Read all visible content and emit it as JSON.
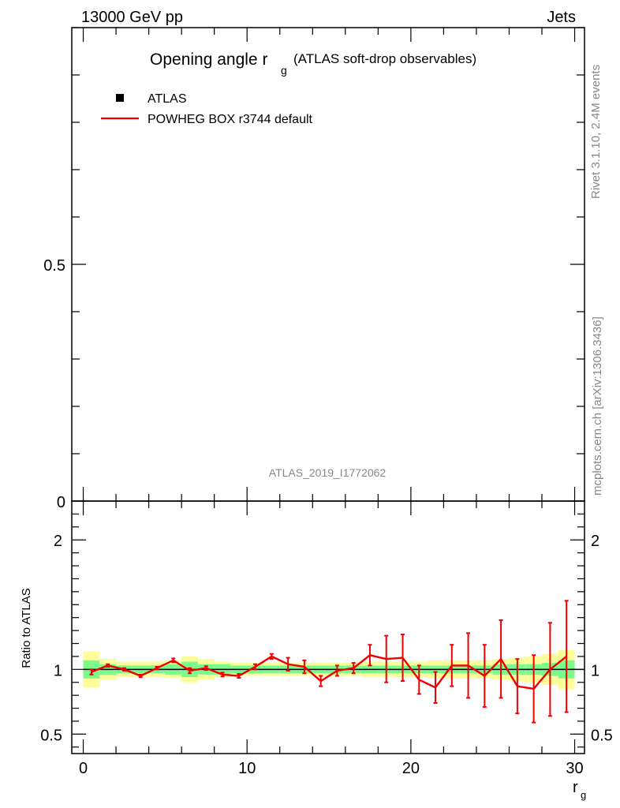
{
  "header": {
    "left": "13000 GeV pp",
    "right": "Jets"
  },
  "title": {
    "main": "Opening angle r",
    "sub": "g",
    "extra": "(ATLAS soft-drop observables)"
  },
  "legend": {
    "data_label": "ATLAS",
    "mc_label": "POWHEG BOX r3744 default"
  },
  "watermark": "ATLAS_2019_I1772062",
  "side_labels": {
    "rivet": "Rivet 3.1.10,  2.4M events",
    "mcplots": "mcplots.cern.ch [arXiv:1306.3436]"
  },
  "colors": {
    "mc_line": "#ee0000",
    "band_inner": "#7dfa8c",
    "band_outer": "#fdfd9a",
    "reference": "#000000"
  },
  "chart_data": [
    {
      "type": "line",
      "panel": "main",
      "title": "Opening angle r_g (ATLAS soft-drop observables)",
      "ylim": [
        0,
        1.0
      ],
      "yticks": [
        0,
        0.5
      ],
      "ytick_labels": [
        "0",
        "0.5"
      ],
      "xlim": [
        -0.7,
        30.6
      ],
      "series": [
        {
          "name": "ATLAS",
          "values": []
        },
        {
          "name": "POWHEG BOX r3744 default",
          "values": []
        }
      ]
    },
    {
      "type": "line",
      "panel": "ratio",
      "ylabel": "Ratio to ATLAS",
      "xlabel": "r",
      "xlabel_sub": "g",
      "xlim": [
        -0.7,
        30.6
      ],
      "ylim": [
        0.35,
        2.3
      ],
      "xticks": [
        0,
        10,
        20,
        30
      ],
      "xtick_labels": [
        "0",
        "10",
        "20",
        "30"
      ],
      "yticks": [
        0.5,
        1,
        2
      ],
      "ytick_labels": [
        "0.5",
        "1",
        "2"
      ],
      "reference": 1.0,
      "x": [
        0.5,
        1.5,
        2.5,
        3.5,
        4.5,
        5.5,
        6.5,
        7.5,
        8.5,
        9.5,
        10.5,
        11.5,
        12.5,
        13.5,
        14.5,
        15.5,
        16.5,
        17.5,
        18.5,
        19.5,
        20.5,
        21.5,
        22.5,
        23.5,
        24.5,
        25.5,
        26.5,
        27.5,
        28.5,
        29.5
      ],
      "band_inner": [
        0.07,
        0.04,
        0.03,
        0.03,
        0.03,
        0.04,
        0.06,
        0.04,
        0.04,
        0.03,
        0.03,
        0.03,
        0.03,
        0.03,
        0.03,
        0.03,
        0.03,
        0.03,
        0.03,
        0.03,
        0.03,
        0.03,
        0.03,
        0.03,
        0.03,
        0.04,
        0.04,
        0.04,
        0.05,
        0.07
      ],
      "band_outer": [
        0.14,
        0.08,
        0.06,
        0.06,
        0.06,
        0.07,
        0.1,
        0.08,
        0.06,
        0.05,
        0.05,
        0.05,
        0.05,
        0.05,
        0.05,
        0.05,
        0.05,
        0.06,
        0.06,
        0.06,
        0.06,
        0.07,
        0.07,
        0.07,
        0.07,
        0.08,
        0.09,
        0.1,
        0.12,
        0.15
      ],
      "series": [
        {
          "name": "POWHEG BOX r3744 default",
          "values": [
            0.98,
            1.03,
            1.0,
            0.95,
            1.01,
            1.07,
            0.99,
            1.01,
            0.96,
            0.95,
            1.02,
            1.1,
            1.04,
            1.02,
            0.91,
            0.99,
            1.01,
            1.11,
            1.08,
            1.09,
            0.92,
            0.86,
            1.03,
            1.03,
            0.95,
            1.08,
            0.87,
            0.85,
            1.0,
            1.1
          ],
          "errors": [
            0.02,
            0.01,
            0.01,
            0.01,
            0.01,
            0.015,
            0.02,
            0.015,
            0.015,
            0.015,
            0.02,
            0.02,
            0.05,
            0.05,
            0.04,
            0.04,
            0.04,
            0.08,
            0.18,
            0.18,
            0.11,
            0.12,
            0.16,
            0.25,
            0.24,
            0.3,
            0.21,
            0.26,
            0.36,
            0.43
          ]
        }
      ]
    }
  ]
}
